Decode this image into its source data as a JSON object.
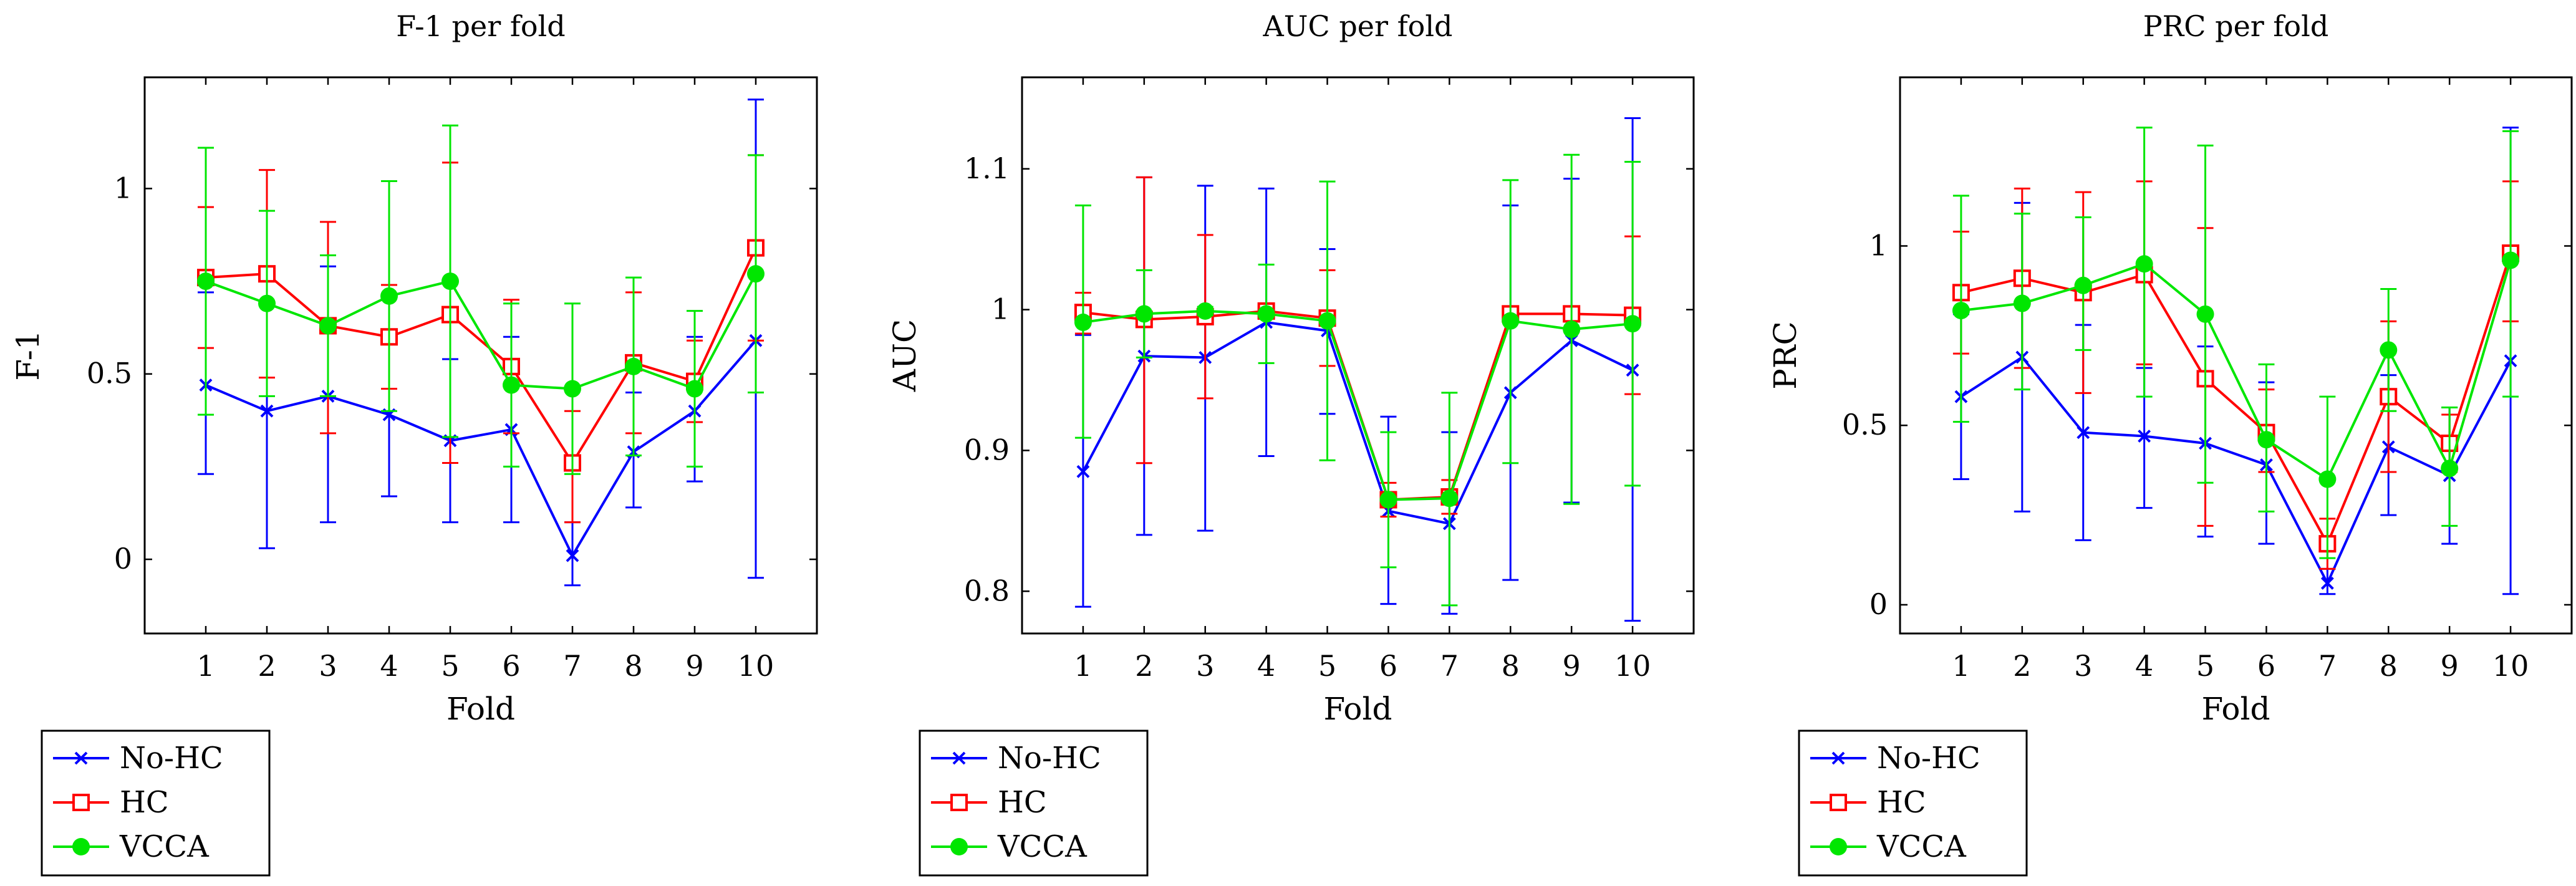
{
  "colors": {
    "no_hc": "#0000ff",
    "hc": "#ff0000",
    "vcca": "#00e600",
    "axis": "#000000"
  },
  "chart_data": [
    {
      "type": "line",
      "title": "F-1 per fold",
      "xlabel": "Fold",
      "ylabel": "F-1",
      "xlim": [
        0,
        11
      ],
      "ylim": [
        -0.2,
        1.3
      ],
      "categories": [
        1,
        2,
        3,
        4,
        5,
        6,
        7,
        8,
        9,
        10
      ],
      "xticks": [
        1,
        2,
        3,
        4,
        5,
        6,
        7,
        8,
        9,
        10
      ],
      "xtick_labels": [
        "1",
        "2",
        "3",
        "4",
        "5",
        "6",
        "7",
        "8",
        "9",
        "10"
      ],
      "yticks": [
        0,
        0.5,
        1
      ],
      "ytick_labels": [
        "0",
        "0.5",
        "1"
      ],
      "legend": {
        "position": "below-left",
        "labels": [
          "No-HC",
          "HC",
          "VCCA"
        ]
      },
      "series": [
        {
          "name": "No-HC",
          "marker": "cross",
          "values": [
            0.47,
            0.4,
            0.44,
            0.39,
            0.32,
            0.35,
            0.01,
            0.29,
            0.4,
            0.59
          ],
          "err_low": [
            0.23,
            0.03,
            0.1,
            0.17,
            0.1,
            0.1,
            -0.07,
            0.14,
            0.21,
            -0.05
          ],
          "err_high": [
            0.72,
            0.77,
            0.79,
            0.61,
            0.54,
            0.6,
            0.1,
            0.45,
            0.6,
            1.24
          ]
        },
        {
          "name": "HC",
          "marker": "square",
          "values": [
            0.76,
            0.77,
            0.63,
            0.6,
            0.66,
            0.52,
            0.26,
            0.53,
            0.48,
            0.84
          ],
          "err_low": [
            0.57,
            0.49,
            0.34,
            0.46,
            0.26,
            0.34,
            0.1,
            0.34,
            0.37,
            0.59
          ],
          "err_high": [
            0.95,
            1.05,
            0.91,
            0.74,
            1.07,
            0.7,
            0.4,
            0.72,
            0.59,
            1.09
          ]
        },
        {
          "name": "VCCA",
          "marker": "circle",
          "values": [
            0.75,
            0.69,
            0.63,
            0.71,
            0.75,
            0.47,
            0.46,
            0.52,
            0.46,
            0.77
          ],
          "err_low": [
            0.39,
            0.44,
            0.44,
            0.4,
            0.33,
            0.25,
            0.23,
            0.28,
            0.25,
            0.45
          ],
          "err_high": [
            1.11,
            0.94,
            0.82,
            1.02,
            1.17,
            0.69,
            0.69,
            0.76,
            0.67,
            1.09
          ]
        }
      ]
    },
    {
      "type": "line",
      "title": "AUC per fold",
      "xlabel": "Fold",
      "ylabel": "AUC",
      "xlim": [
        0,
        11
      ],
      "ylim": [
        0.77,
        1.165
      ],
      "categories": [
        1,
        2,
        3,
        4,
        5,
        6,
        7,
        8,
        9,
        10
      ],
      "xticks": [
        1,
        2,
        3,
        4,
        5,
        6,
        7,
        8,
        9,
        10
      ],
      "xtick_labels": [
        "1",
        "2",
        "3",
        "4",
        "5",
        "6",
        "7",
        "8",
        "9",
        "10"
      ],
      "yticks": [
        0.8,
        0.9,
        1,
        1.1
      ],
      "ytick_labels": [
        "0.8",
        "0.9",
        "1",
        "1.1"
      ],
      "legend": {
        "position": "below-left",
        "labels": [
          "No-HC",
          "HC",
          "VCCA"
        ]
      },
      "series": [
        {
          "name": "No-HC",
          "marker": "cross",
          "values": [
            0.885,
            0.967,
            0.966,
            0.991,
            0.985,
            0.857,
            0.848,
            0.941,
            0.978,
            0.957
          ],
          "err_low": [
            0.789,
            0.84,
            0.843,
            0.896,
            0.926,
            0.791,
            0.784,
            0.808,
            0.863,
            0.779
          ],
          "err_high": [
            0.982,
            1.094,
            1.088,
            1.086,
            1.043,
            0.924,
            0.913,
            1.074,
            1.093,
            1.136
          ]
        },
        {
          "name": "HC",
          "marker": "square",
          "values": [
            0.998,
            0.993,
            0.995,
            0.999,
            0.994,
            0.865,
            0.867,
            0.997,
            0.997,
            0.996
          ],
          "err_low": [
            0.983,
            0.891,
            0.937,
            0.996,
            0.96,
            0.853,
            0.855,
            0.993,
            0.993,
            0.94
          ],
          "err_high": [
            1.012,
            1.094,
            1.053,
            1.002,
            1.028,
            0.877,
            0.879,
            1.001,
            1.001,
            1.052
          ]
        },
        {
          "name": "VCCA",
          "marker": "circle",
          "values": [
            0.991,
            0.997,
            0.999,
            0.997,
            0.992,
            0.865,
            0.866,
            0.992,
            0.986,
            0.99
          ],
          "err_low": [
            0.909,
            0.966,
            0.996,
            0.962,
            0.893,
            0.817,
            0.79,
            0.891,
            0.862,
            0.875
          ],
          "err_high": [
            1.074,
            1.028,
            1.002,
            1.032,
            1.091,
            0.913,
            0.941,
            1.092,
            1.11,
            1.105
          ]
        }
      ]
    },
    {
      "type": "line",
      "title": "PRC per fold",
      "xlabel": "Fold",
      "ylabel": "PRC",
      "xlim": [
        0,
        11
      ],
      "ylim": [
        -0.08,
        1.47
      ],
      "categories": [
        1,
        2,
        3,
        4,
        5,
        6,
        7,
        8,
        9,
        10
      ],
      "xticks": [
        1,
        2,
        3,
        4,
        5,
        6,
        7,
        8,
        9,
        10
      ],
      "xtick_labels": [
        "1",
        "2",
        "3",
        "4",
        "5",
        "6",
        "7",
        "8",
        "9",
        "10"
      ],
      "yticks": [
        0,
        0.5,
        1
      ],
      "ytick_labels": [
        "0",
        "0.5",
        "1"
      ],
      "legend": {
        "position": "below-left",
        "labels": [
          "No-HC",
          "HC",
          "VCCA"
        ]
      },
      "series": [
        {
          "name": "No-HC",
          "marker": "cross",
          "values": [
            0.58,
            0.69,
            0.48,
            0.47,
            0.45,
            0.39,
            0.06,
            0.44,
            0.36,
            0.68
          ],
          "err_low": [
            0.35,
            0.26,
            0.18,
            0.27,
            0.19,
            0.17,
            0.03,
            0.25,
            0.17,
            0.03
          ],
          "err_high": [
            0.81,
            1.12,
            0.78,
            0.66,
            0.72,
            0.62,
            0.1,
            0.64,
            0.55,
            1.33
          ]
        },
        {
          "name": "HC",
          "marker": "square",
          "values": [
            0.87,
            0.91,
            0.87,
            0.92,
            0.63,
            0.48,
            0.17,
            0.58,
            0.45,
            0.98
          ],
          "err_low": [
            0.7,
            0.66,
            0.59,
            0.67,
            0.22,
            0.37,
            0.1,
            0.37,
            0.37,
            0.79
          ],
          "err_high": [
            1.04,
            1.16,
            1.15,
            1.18,
            1.05,
            0.6,
            0.24,
            0.79,
            0.53,
            1.18
          ]
        },
        {
          "name": "VCCA",
          "marker": "circle",
          "values": [
            0.82,
            0.84,
            0.89,
            0.95,
            0.81,
            0.46,
            0.35,
            0.71,
            0.38,
            0.96
          ],
          "err_low": [
            0.51,
            0.6,
            0.71,
            0.58,
            0.34,
            0.26,
            0.13,
            0.54,
            0.22,
            0.58
          ],
          "err_high": [
            1.14,
            1.09,
            1.08,
            1.33,
            1.28,
            0.67,
            0.58,
            0.88,
            0.55,
            1.32
          ]
        }
      ]
    }
  ]
}
